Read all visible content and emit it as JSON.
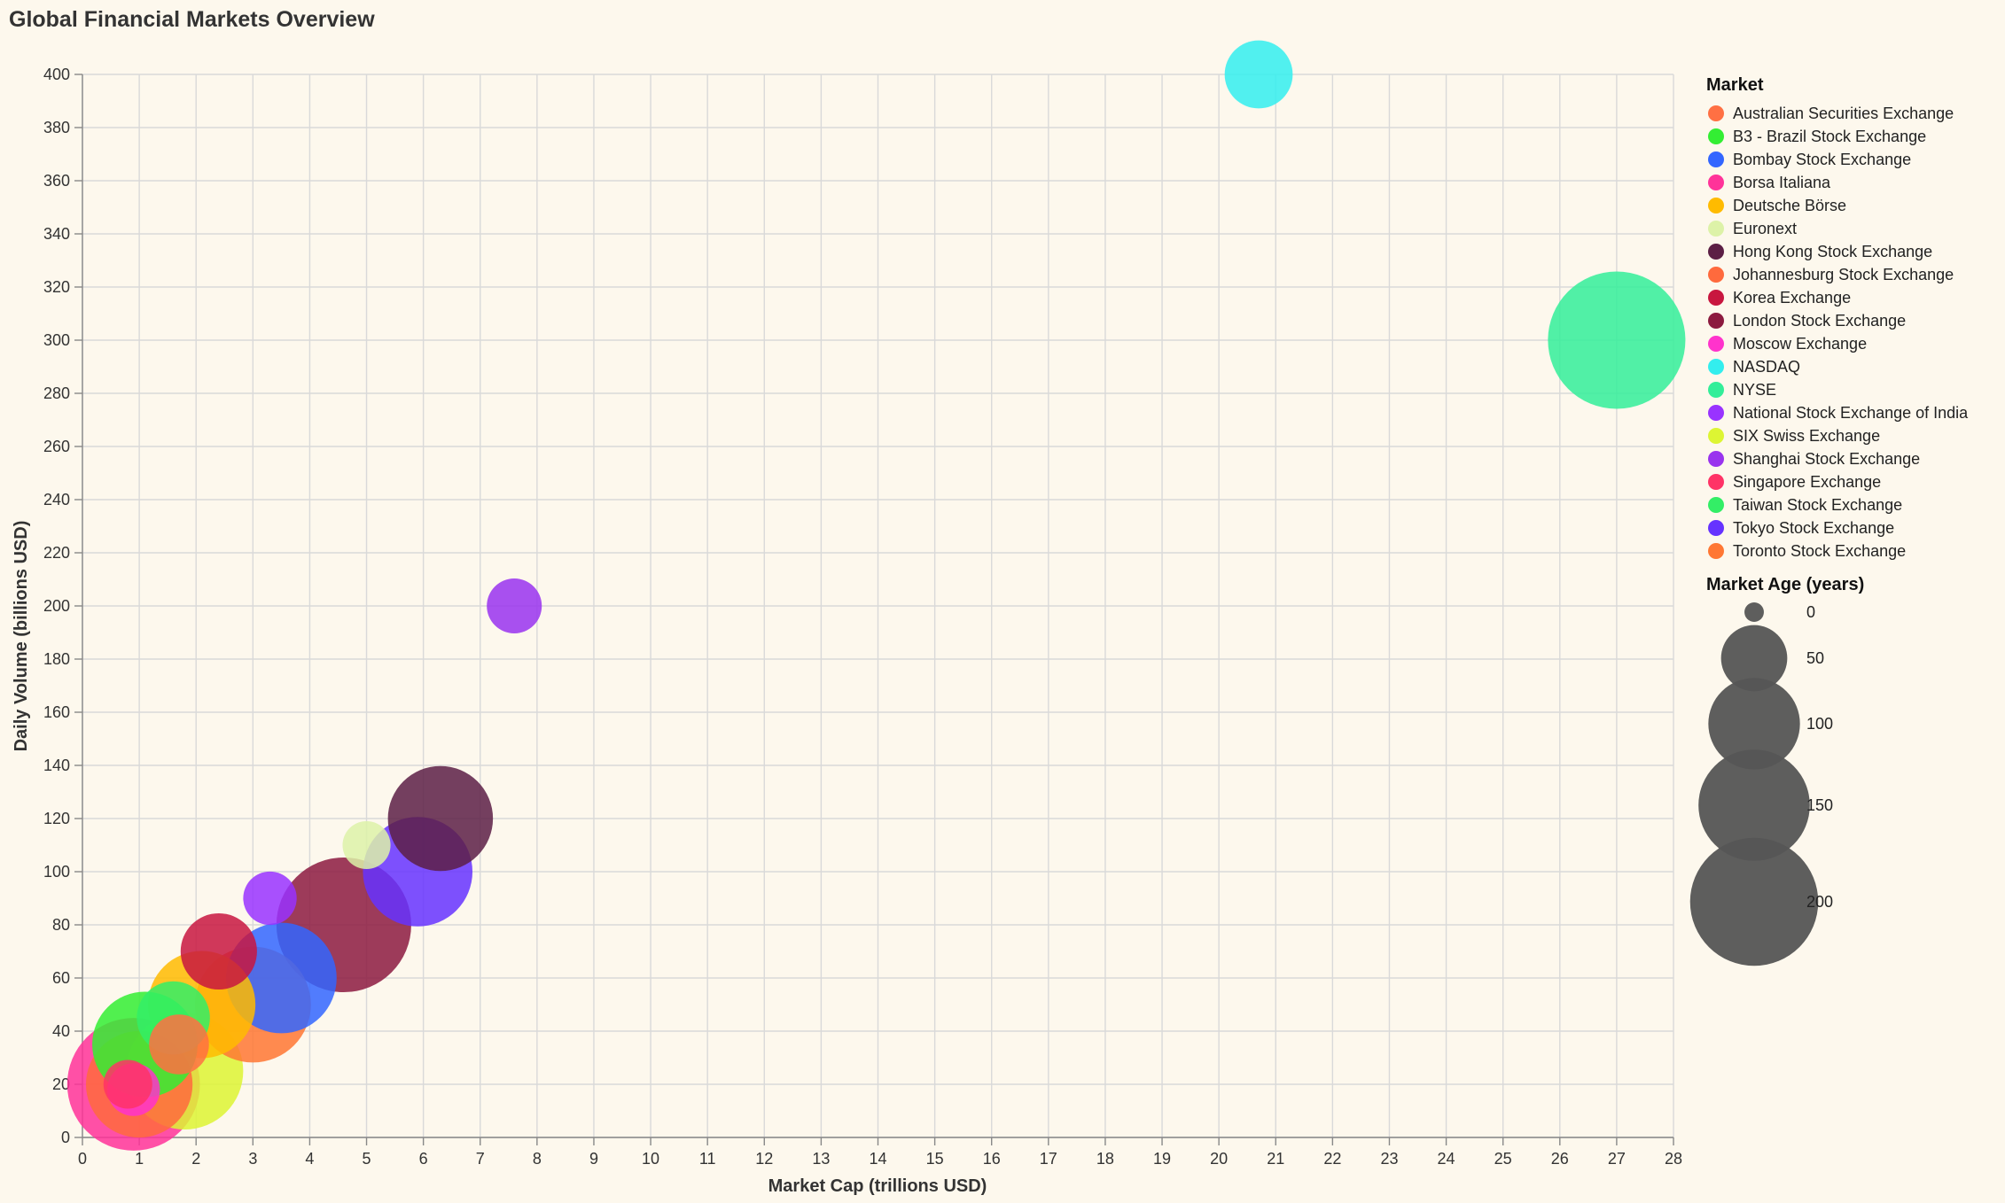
{
  "chart_data": {
    "type": "scatter",
    "title": "Global Financial Markets Overview",
    "xlabel": "Market Cap (trillions USD)",
    "ylabel": "Daily Volume (billions USD)",
    "xlim": [
      0,
      28
    ],
    "ylim": [
      0,
      400
    ],
    "x_ticks": [
      0,
      1,
      2,
      3,
      4,
      5,
      6,
      7,
      8,
      9,
      10,
      11,
      12,
      13,
      14,
      15,
      16,
      17,
      18,
      19,
      20,
      21,
      22,
      23,
      24,
      25,
      26,
      27,
      28
    ],
    "y_ticks": [
      0,
      20,
      40,
      60,
      80,
      100,
      120,
      140,
      160,
      180,
      200,
      220,
      240,
      260,
      280,
      300,
      320,
      340,
      360,
      380,
      400
    ],
    "grid": true,
    "color_legend": {
      "title": "Market",
      "placement": "right",
      "items": [
        {
          "label": "Australian Securities Exchange",
          "color": "#ff7043"
        },
        {
          "label": "B3 - Brazil Stock Exchange",
          "color": "#33ee33"
        },
        {
          "label": "Bombay Stock Exchange",
          "color": "#3366ff"
        },
        {
          "label": "Borsa Italiana",
          "color": "#ff3399"
        },
        {
          "label": "Deutsche Börse",
          "color": "#ffbb00"
        },
        {
          "label": "Euronext",
          "color": "#ddf2a8"
        },
        {
          "label": "Hong Kong Stock Exchange",
          "color": "#5c1f45"
        },
        {
          "label": "Johannesburg Stock Exchange",
          "color": "#ff6a3d"
        },
        {
          "label": "Korea Exchange",
          "color": "#c8163f"
        },
        {
          "label": "London Stock Exchange",
          "color": "#8c1a3f"
        },
        {
          "label": "Moscow Exchange",
          "color": "#ff33cc"
        },
        {
          "label": "NASDAQ",
          "color": "#33eeee"
        },
        {
          "label": "NYSE",
          "color": "#33ee99"
        },
        {
          "label": "National Stock Exchange of India",
          "color": "#9933ff"
        },
        {
          "label": "SIX Swiss Exchange",
          "color": "#ddf533"
        },
        {
          "label": "Shanghai Stock Exchange",
          "color": "#9933ee"
        },
        {
          "label": "Singapore Exchange",
          "color": "#ff3366"
        },
        {
          "label": "Taiwan Stock Exchange",
          "color": "#33ee66"
        },
        {
          "label": "Tokyo Stock Exchange",
          "color": "#6633ff"
        },
        {
          "label": "Toronto Stock Exchange",
          "color": "#ff7733"
        }
      ]
    },
    "size_legend": {
      "title": "Market Age (years)",
      "values": [
        0,
        50,
        100,
        150,
        200
      ]
    },
    "series": [
      {
        "name": "NASDAQ",
        "x": 20.7,
        "y": 400,
        "age": 53
      },
      {
        "name": "NYSE",
        "x": 27.0,
        "y": 300,
        "age": 231
      },
      {
        "name": "Shanghai Stock Exchange",
        "x": 7.6,
        "y": 200,
        "age": 33
      },
      {
        "name": "Hong Kong Stock Exchange",
        "x": 6.3,
        "y": 120,
        "age": 133
      },
      {
        "name": "Euronext",
        "x": 5.0,
        "y": 110,
        "age": 24
      },
      {
        "name": "Tokyo Stock Exchange",
        "x": 5.9,
        "y": 100,
        "age": 145
      },
      {
        "name": "National Stock Exchange of India",
        "x": 3.3,
        "y": 90,
        "age": 31
      },
      {
        "name": "London Stock Exchange",
        "x": 4.6,
        "y": 80,
        "age": 222
      },
      {
        "name": "Korea Exchange",
        "x": 2.4,
        "y": 70,
        "age": 68
      },
      {
        "name": "Bombay Stock Exchange",
        "x": 3.5,
        "y": 60,
        "age": 148
      },
      {
        "name": "Toronto Stock Exchange",
        "x": 3.0,
        "y": 50,
        "age": 163
      },
      {
        "name": "Deutsche Börse",
        "x": 2.1,
        "y": 50,
        "age": 139
      },
      {
        "name": "Taiwan Stock Exchange",
        "x": 1.6,
        "y": 45,
        "age": 62
      },
      {
        "name": "B3 - Brazil Stock Exchange",
        "x": 1.1,
        "y": 35,
        "age": 134
      },
      {
        "name": "Australian Securities Exchange",
        "x": 1.7,
        "y": 35,
        "age": 40
      },
      {
        "name": "SIX Swiss Exchange",
        "x": 1.8,
        "y": 25,
        "age": 166
      },
      {
        "name": "Johannesburg Stock Exchange",
        "x": 1.0,
        "y": 20,
        "age": 137
      },
      {
        "name": "Borsa Italiana",
        "x": 0.9,
        "y": 20,
        "age": 215
      },
      {
        "name": "Singapore Exchange",
        "x": 0.8,
        "y": 20,
        "age": 25
      },
      {
        "name": "Moscow Exchange",
        "x": 0.9,
        "y": 18,
        "age": 30
      }
    ]
  }
}
